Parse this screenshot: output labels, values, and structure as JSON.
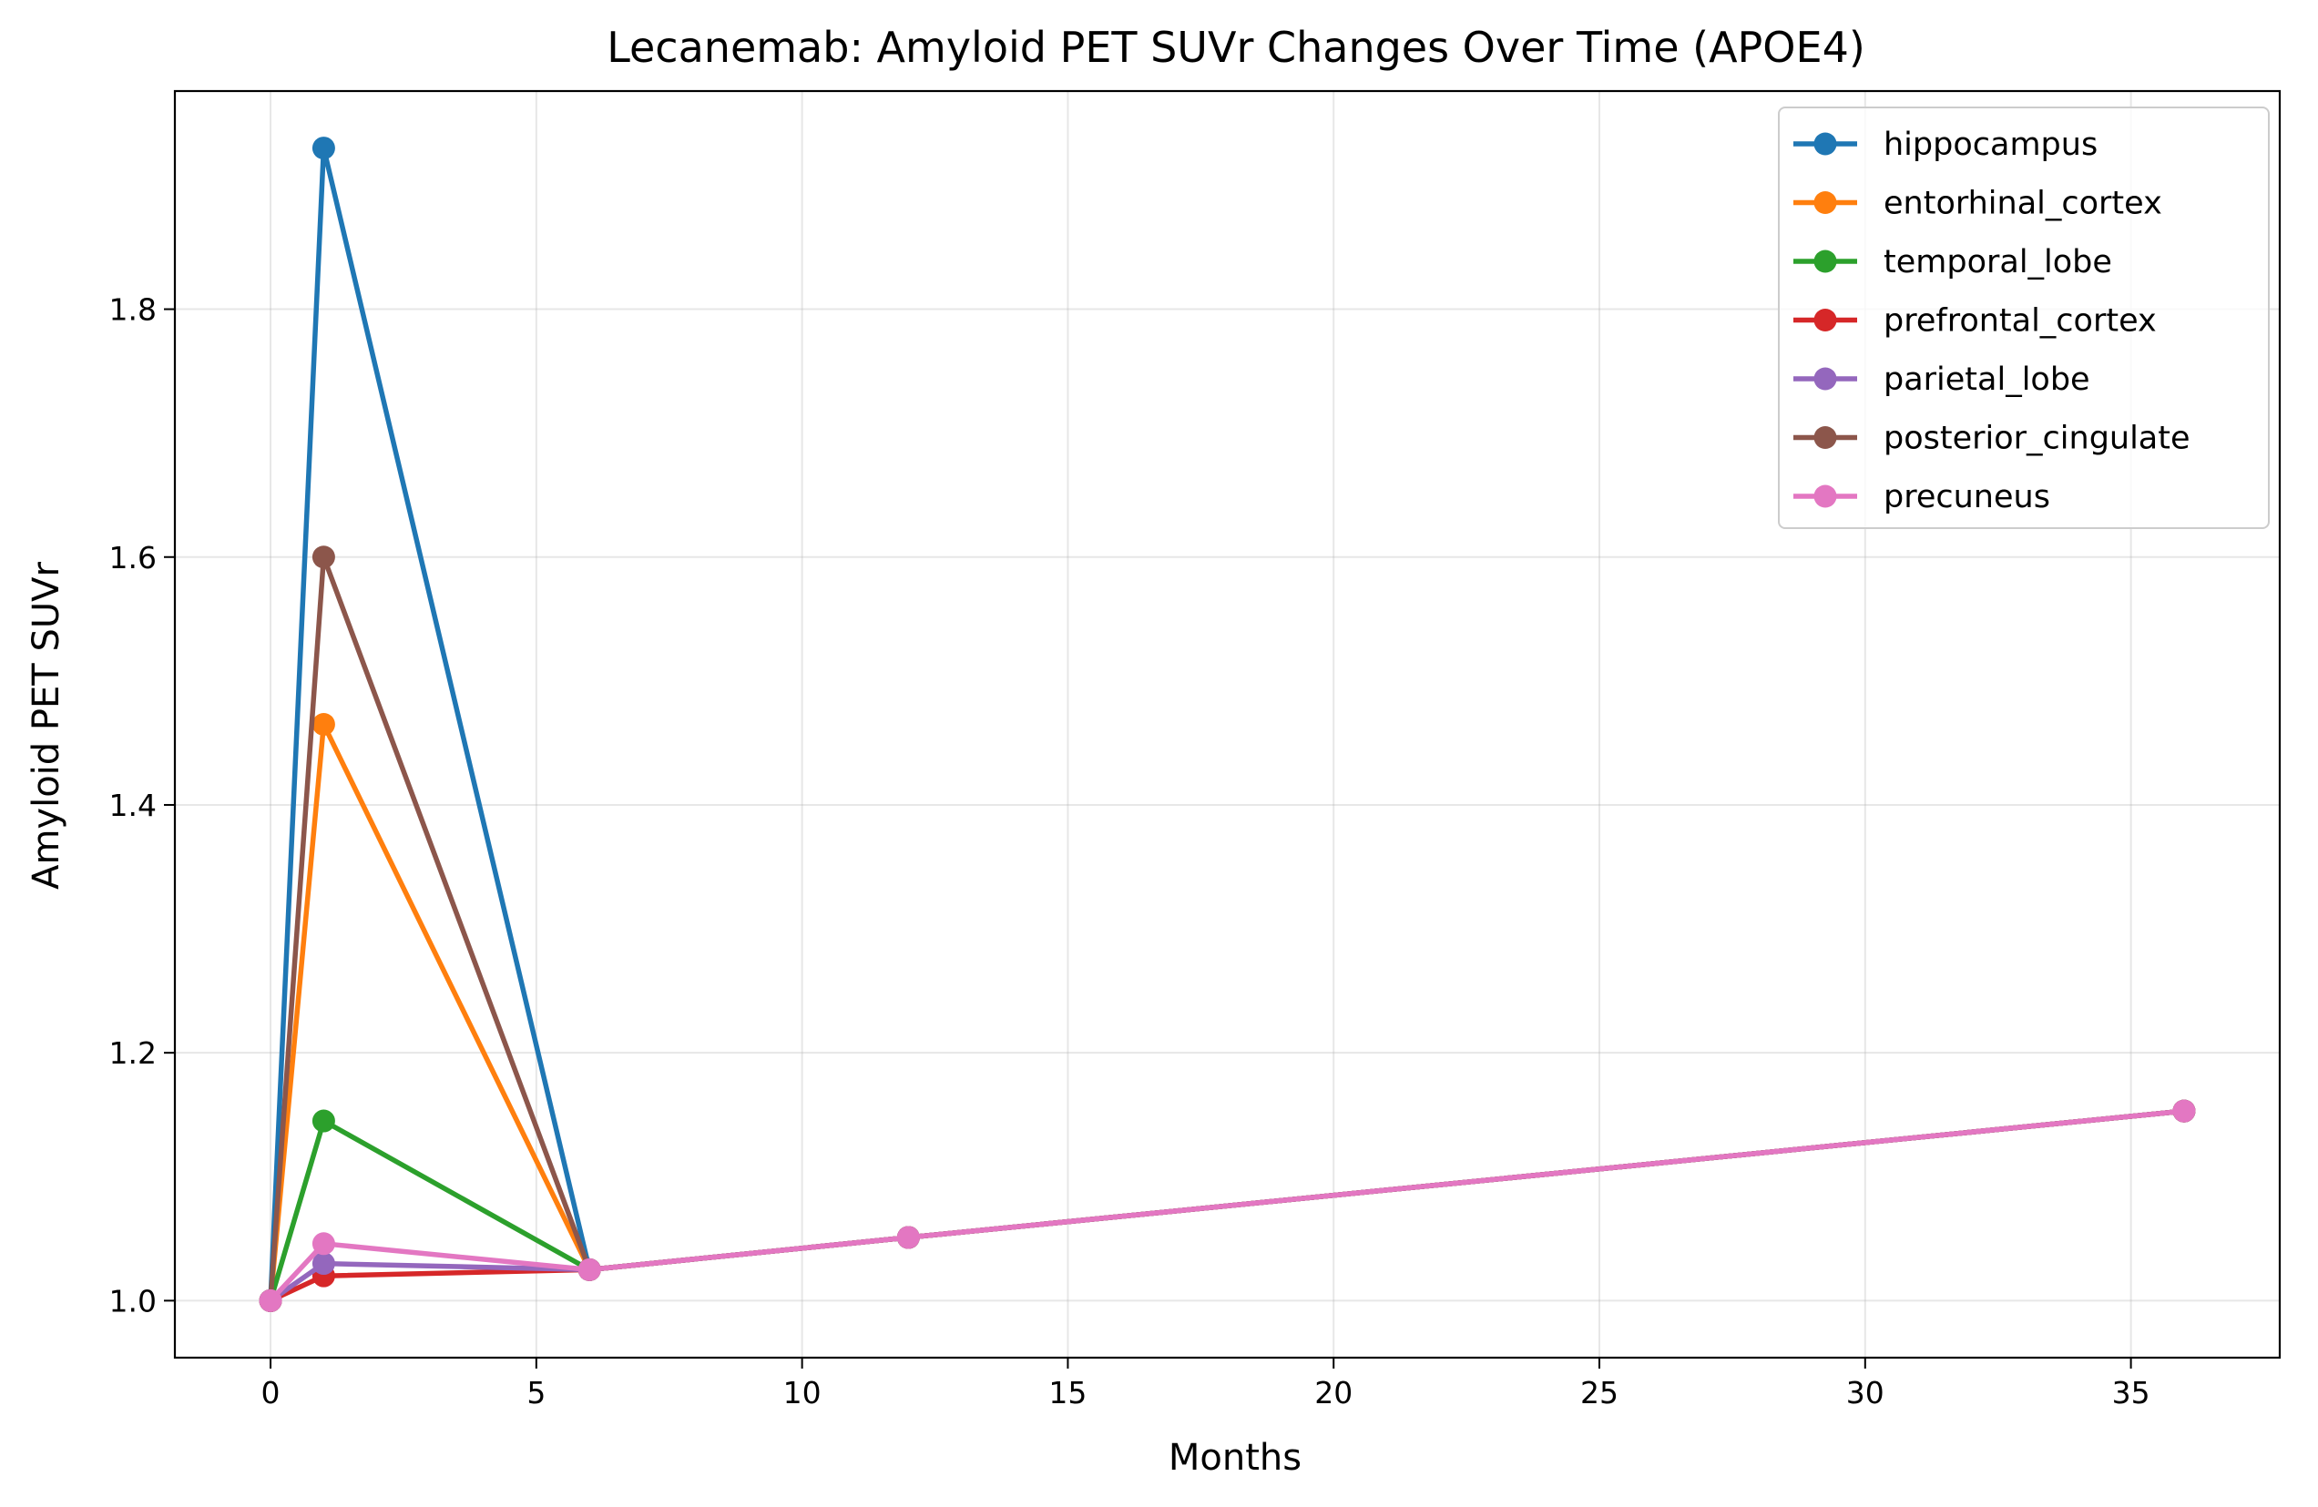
{
  "chart_data": {
    "type": "line",
    "title": "Lecanemab: Amyloid PET SUVr Changes Over Time (APOE4)",
    "xlabel": "Months",
    "ylabel": "Amyloid PET SUVr",
    "xlim": [
      -1.8,
      37.8
    ],
    "ylim": [
      0.954,
      1.976
    ],
    "x_ticks": [
      0,
      5,
      10,
      15,
      20,
      25,
      30,
      35
    ],
    "y_ticks": [
      1.0,
      1.2,
      1.4,
      1.6,
      1.8
    ],
    "x_tick_labels": [
      "0",
      "5",
      "10",
      "15",
      "20",
      "25",
      "30",
      "35"
    ],
    "y_tick_labels": [
      "1.0",
      "1.2",
      "1.4",
      "1.6",
      "1.8"
    ],
    "grid": true,
    "legend_position": "top-right",
    "series": [
      {
        "name": "hippocampus",
        "color": "#1f77b4",
        "points": [
          [
            0,
            1.0
          ],
          [
            1,
            1.93
          ],
          [
            6,
            1.025
          ],
          [
            12,
            1.051
          ],
          [
            36,
            1.153
          ]
        ]
      },
      {
        "name": "entorhinal_cortex",
        "color": "#ff7f0e",
        "points": [
          [
            0,
            1.0
          ],
          [
            1,
            1.465
          ],
          [
            6,
            1.025
          ],
          [
            12,
            1.051
          ],
          [
            36,
            1.153
          ]
        ]
      },
      {
        "name": "temporal_lobe",
        "color": "#2ca02c",
        "points": [
          [
            0,
            1.0
          ],
          [
            1,
            1.145
          ],
          [
            6,
            1.025
          ],
          [
            12,
            1.051
          ],
          [
            36,
            1.153
          ]
        ]
      },
      {
        "name": "prefrontal_cortex",
        "color": "#d62728",
        "points": [
          [
            0,
            1.0
          ],
          [
            1,
            1.02
          ],
          [
            6,
            1.025
          ],
          [
            12,
            1.051
          ],
          [
            36,
            1.153
          ]
        ]
      },
      {
        "name": "parietal_lobe",
        "color": "#9467bd",
        "points": [
          [
            0,
            1.0
          ],
          [
            1,
            1.03
          ],
          [
            6,
            1.025
          ],
          [
            12,
            1.051
          ],
          [
            36,
            1.153
          ]
        ]
      },
      {
        "name": "posterior_cingulate",
        "color": "#8c564b",
        "points": [
          [
            0,
            1.0
          ],
          [
            1,
            1.6
          ],
          [
            6,
            1.025
          ],
          [
            12,
            1.051
          ],
          [
            36,
            1.153
          ]
        ]
      },
      {
        "name": "precuneus",
        "color": "#e377c2",
        "points": [
          [
            0,
            1.0
          ],
          [
            1,
            1.046
          ],
          [
            6,
            1.025
          ],
          [
            12,
            1.051
          ],
          [
            36,
            1.153
          ]
        ]
      }
    ]
  }
}
